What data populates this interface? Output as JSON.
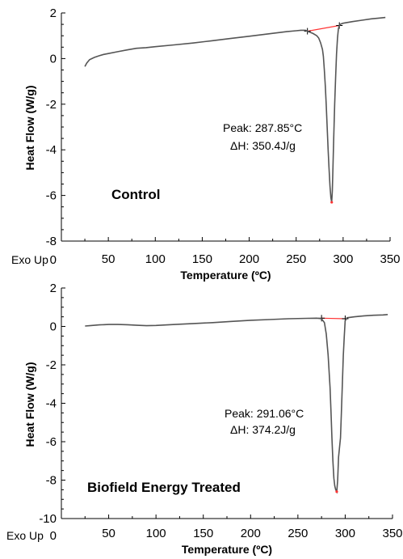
{
  "chart_data": [
    {
      "type": "line",
      "title": "",
      "xlabel": "Temperature (ºC)",
      "ylabel": "Heat Flow (W/g)",
      "xlim": [
        0,
        350
      ],
      "ylim": [
        -8,
        2
      ],
      "x_ticks": [
        0,
        50,
        100,
        150,
        200,
        250,
        300,
        350
      ],
      "y_ticks": [
        2,
        0,
        -2,
        -4,
        -6,
        -8
      ],
      "exo_label": "Exo Up",
      "sample_label": "Control",
      "annotation": [
        "Peak: 287.85°C",
        "ΔH: 350.4J/g"
      ],
      "grid": false,
      "colors": {
        "trace": "#555555",
        "baseline": "#ff3333"
      },
      "series": [
        {
          "x": [
            25,
            27,
            30,
            35,
            40,
            45,
            50,
            60,
            70,
            80,
            90,
            100,
            120,
            140,
            160,
            180,
            200,
            220,
            240,
            250,
            255,
            260,
            262,
            265,
            268,
            270,
            272,
            274,
            276,
            278,
            279,
            280,
            281,
            282,
            283,
            284,
            285,
            286,
            287,
            287.85,
            288.5,
            289,
            290,
            291,
            292,
            293,
            294,
            295,
            296,
            297,
            298,
            300,
            310,
            320,
            330,
            340,
            345
          ],
          "y": [
            -0.35,
            -0.2,
            -0.05,
            0.05,
            0.12,
            0.18,
            0.22,
            0.3,
            0.38,
            0.45,
            0.48,
            0.52,
            0.6,
            0.68,
            0.78,
            0.88,
            0.98,
            1.08,
            1.18,
            1.22,
            1.24,
            1.24,
            1.2,
            1.15,
            1.1,
            1.05,
            1.0,
            0.9,
            0.7,
            0.4,
            0.1,
            -0.5,
            -1.2,
            -2.0,
            -3.0,
            -4.0,
            -4.8,
            -5.6,
            -6.1,
            -6.3,
            -5.8,
            -5.0,
            -3.5,
            -2.0,
            -0.8,
            0.2,
            0.9,
            1.3,
            1.45,
            1.5,
            1.52,
            1.55,
            1.62,
            1.68,
            1.74,
            1.78,
            1.8
          ]
        }
      ],
      "baseline": {
        "x": [
          262,
          296
        ],
        "y": [
          1.2,
          1.45
        ]
      }
    },
    {
      "type": "line",
      "title": "",
      "xlabel": "Temperature (ºC)",
      "ylabel": "Heat Flow (W/g)",
      "xlim": [
        0,
        350
      ],
      "ylim": [
        -10,
        2
      ],
      "x_ticks": [
        0,
        50,
        100,
        150,
        200,
        250,
        300,
        350
      ],
      "y_ticks": [
        2,
        0,
        -2,
        -4,
        -6,
        -8,
        -10
      ],
      "exo_label": "Exo Up",
      "sample_label": "Biofield Energy Treated",
      "annotation": [
        "Peak: 291.06°C",
        "ΔH: 374.2J/g"
      ],
      "grid": false,
      "colors": {
        "trace": "#555555",
        "baseline": "#ff3333"
      },
      "series": [
        {
          "x": [
            25,
            30,
            40,
            50,
            60,
            70,
            80,
            90,
            100,
            120,
            140,
            160,
            180,
            200,
            220,
            240,
            260,
            270,
            275,
            278,
            280,
            282,
            284,
            285,
            286,
            287,
            288,
            289,
            290,
            291.06,
            292,
            293,
            294,
            295,
            296,
            297,
            298,
            299,
            300,
            302,
            310,
            320,
            330,
            340,
            345
          ],
          "y": [
            0.02,
            0.04,
            0.08,
            0.1,
            0.1,
            0.09,
            0.06,
            0.04,
            0.05,
            0.1,
            0.15,
            0.2,
            0.26,
            0.32,
            0.36,
            0.4,
            0.42,
            0.43,
            0.4,
            0.2,
            -0.4,
            -1.5,
            -3.2,
            -4.5,
            -5.8,
            -7.0,
            -7.9,
            -8.3,
            -8.5,
            -8.6,
            -8.0,
            -6.8,
            -6.3,
            -5.8,
            -4.5,
            -3.0,
            -1.5,
            -0.5,
            0.3,
            0.45,
            0.5,
            0.55,
            0.58,
            0.6,
            0.62
          ]
        }
      ],
      "baseline": {
        "x": [
          275,
          300
        ],
        "y": [
          0.43,
          0.4
        ]
      }
    }
  ]
}
